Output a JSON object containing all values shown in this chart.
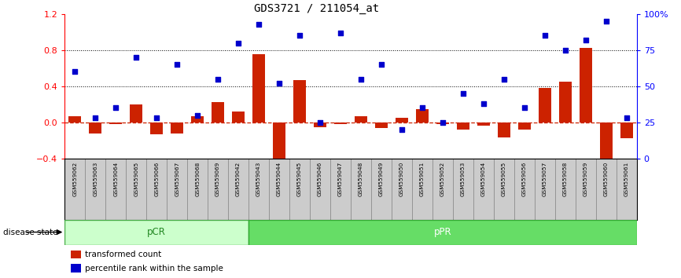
{
  "title": "GDS3721 / 211054_at",
  "samples": [
    "GSM559062",
    "GSM559063",
    "GSM559064",
    "GSM559065",
    "GSM559066",
    "GSM559067",
    "GSM559068",
    "GSM559069",
    "GSM559042",
    "GSM559043",
    "GSM559044",
    "GSM559045",
    "GSM559046",
    "GSM559047",
    "GSM559048",
    "GSM559049",
    "GSM559050",
    "GSM559051",
    "GSM559052",
    "GSM559053",
    "GSM559054",
    "GSM559055",
    "GSM559056",
    "GSM559057",
    "GSM559058",
    "GSM559059",
    "GSM559060",
    "GSM559061"
  ],
  "transformed_count": [
    0.07,
    -0.12,
    -0.02,
    0.2,
    -0.13,
    -0.12,
    0.07,
    0.22,
    0.12,
    0.75,
    -0.5,
    0.47,
    -0.05,
    -0.02,
    0.07,
    -0.06,
    0.05,
    0.15,
    -0.02,
    -0.08,
    -0.04,
    -0.17,
    -0.08,
    0.38,
    0.45,
    0.82,
    -0.52,
    -0.18
  ],
  "percentile_rank": [
    60,
    28,
    35,
    70,
    28,
    65,
    30,
    55,
    80,
    93,
    52,
    85,
    25,
    87,
    55,
    65,
    20,
    35,
    25,
    45,
    38,
    55,
    35,
    85,
    75,
    82,
    95,
    28
  ],
  "pcr_count": 9,
  "ppr_count": 19,
  "bar_color": "#cc2200",
  "dot_color": "#0000cc",
  "ylim_left": [
    -0.4,
    1.2
  ],
  "ylim_right": [
    0,
    100
  ],
  "yticks_left": [
    -0.4,
    0.0,
    0.4,
    0.8,
    1.2
  ],
  "yticks_right": [
    0,
    25,
    50,
    75,
    100
  ],
  "ytick_labels_right": [
    "0",
    "25",
    "50",
    "75",
    "100%"
  ],
  "hlines": [
    0.4,
    0.8
  ],
  "pcr_color": "#ccffcc",
  "ppr_color": "#66dd66",
  "bg_color": "#ffffff",
  "title_fontsize": 10,
  "label_bg": "#cccccc",
  "label_edge": "#aaaaaa"
}
